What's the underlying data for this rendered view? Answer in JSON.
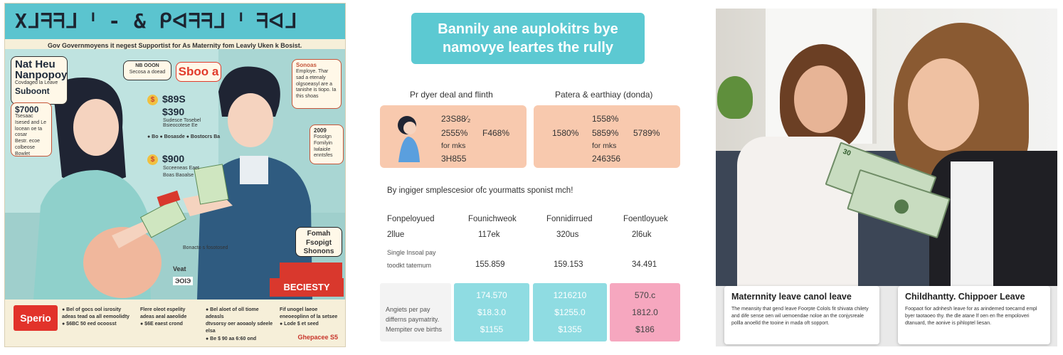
{
  "poster": {
    "banner": "Xᒧᖷᖷᒧ ᑊ - & ᑭᐊᖷᖷᒧ ᑊ ᖷᐊᒧ",
    "subtitle": "Gov Governmoyens it negest Supportist for As Maternity fom Leavly Uken k Bosist.",
    "bubble_left": {
      "line1": "Nat Heu",
      "line2": "Nanpopoy",
      "line3": "Covdaged la Leave",
      "line4": "Suboont"
    },
    "bubble_top": {
      "line1": "NB OOON",
      "line2": "Secosa a doead"
    },
    "red_word": "Sboo a",
    "bubble_right": {
      "title": "Sonoas",
      "body": "Employe. Thar sad a etenaly olgsoeasyl are a tanishe is tiopo. Ia this shoas"
    },
    "stat1": {
      "value": "$7000",
      "text": "Tsesaac Isesed and Le locean oe ta cosar"
    },
    "stat1_sub": "Bestr. ecoe colbeose Bowlet",
    "money1": "$89S",
    "money2": "$390",
    "money_sub": "Sudesce Tosebel  Bsieocotese Ee",
    "bullet_row": "● Bo ●  Bosasde  ● Bostocrs Ba",
    "money3": "$900",
    "money3_sub": "Scceeneas  Eaet",
    "money3_sub2": "Boas  Baoalse",
    "bubble_right2": {
      "value": "2009",
      "text": "Fosolgn Fomilyin Iwlaiole enntsfes"
    },
    "bill_label": "Bonacto s fosotosed",
    "cashier": "Veat",
    "till": "ЭОІЭ",
    "family_box": {
      "line1": "Fomah",
      "line2": "Fsopigt",
      "line3": "Shonons"
    },
    "beciesty": "BECIESTY",
    "logo": "Sperio",
    "footer_cols": [
      [
        "● Bel of gocs ool isrosity",
        "adeas tead oa all eemoolidty",
        "● $6BC 50 eed ocoosst"
      ],
      [
        "Flere oleot espelity",
        "adeas aeal aaeolide",
        "● $6E eaest crond"
      ],
      [
        "● Bel aloet of oll tiome adeasls",
        "dtvsorsy oer aooaoly sdeele elsa",
        "● Be $ 90 aa 6:60 ond"
      ],
      [
        "Fif unogel laeoe",
        "eneoeoplinn of la setsee",
        "● Lode $ et seed"
      ]
    ],
    "brand": "Ghepacee S5"
  },
  "infographic": {
    "title_line1": "Bannily ane auplokitrs bye",
    "title_line2": "namovye leartes the rully",
    "card_left_head": "Pr dyer deal and flinth",
    "card_left": {
      "v1": "23S88⁄₂",
      "v2": "2555%",
      "v3": "F468%",
      "v4": "for mks",
      "v5": "3H855"
    },
    "card_right_head": "Patera & earthiay (donda)",
    "card_right": {
      "v1": "1558%",
      "v2": "1580%",
      "v3": "5859%",
      "v4": "5789%",
      "v5": "for mks",
      "v6": "246356"
    },
    "section": "By ingiger smplescesior ofc yourmatts sponist mch!",
    "columns": [
      "Fonpeloyued",
      "Founichweok",
      "Fonnidirrued",
      "Foentloyuek"
    ],
    "row1": [
      "2llue",
      "117ek",
      "320us",
      "2l6uk"
    ],
    "row2_label1": "Single Insoal pay",
    "row2_label2": "toodkt tatemum",
    "row2": [
      "155.859",
      "159.153",
      "34.491"
    ],
    "tile_label": [
      "Angiets per pay",
      "differns paymatrity.",
      "Mempiter ove births"
    ],
    "tile1": [
      "174.570",
      "$18.3.0",
      "$1155"
    ],
    "tile2": [
      "1216210",
      "$1255.0",
      "$1355"
    ],
    "tile3": [
      "570.c",
      "1812.0",
      "$186"
    ],
    "colors": {
      "cyan": "#5cc9d2",
      "peach": "#f8c9ae",
      "pink": "#f6a7bf",
      "tile_cyan": "#8fdce2"
    }
  },
  "photo": {
    "bill1": "30",
    "caption_left": {
      "title": "Maternnity leave canol leave",
      "body": "The meansity that gend leave Foorpte Colols fit shivata chilety and dife sense oen wil uemoendae noloe an the conjysreale pollla anoelld the tooine in mada oft sopport."
    },
    "caption_right": {
      "title": "Childhantty. Chippoer Leave",
      "body": "Foopaot fior adnhesh leave for as arindemed toecarnd empl byer taotaoeo thy. the dle atane lf oen en fhe empoloveri dtanuard, the aonive is pihloptel liesan."
    }
  }
}
